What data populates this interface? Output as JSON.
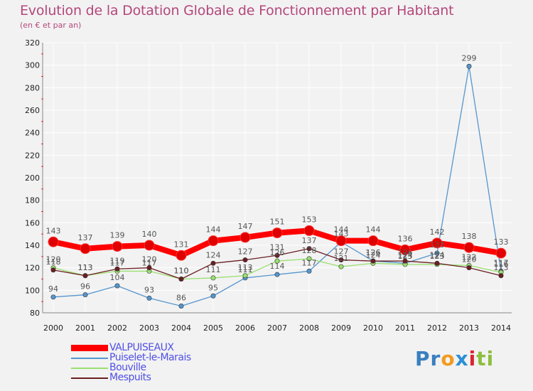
{
  "chart_data": {
    "type": "line",
    "title": "Evolution de la Dotation Globale de Fonctionnement par Habitant",
    "subtitle": "(en € et par an)",
    "xlabel": "",
    "ylabel": "",
    "ylim": [
      80,
      320
    ],
    "y_ticks": [
      "80",
      "100",
      "120",
      "140",
      "160",
      "180",
      "200",
      "220",
      "240",
      "260",
      "280",
      "300",
      "320"
    ],
    "categories": [
      "2000",
      "2001",
      "2002",
      "2003",
      "2004",
      "2005",
      "2006",
      "2007",
      "2008",
      "2009",
      "2010",
      "2011",
      "2012",
      "2013",
      "2014"
    ],
    "series": [
      {
        "name": "VALPUISEAUX",
        "color": "#ff0000",
        "values": [
          143,
          137,
          139,
          140,
          131,
          144,
          147,
          151,
          153,
          144,
          144,
          136,
          142,
          138,
          133
        ],
        "labels": [
          "143",
          "137",
          "139",
          "140",
          "131",
          "144",
          "147",
          "151",
          "153",
          "144",
          "144",
          "136",
          "142",
          "138",
          "133"
        ]
      },
      {
        "name": "Puiselet-le-Marais",
        "color": "#5596ce",
        "values": [
          94,
          96,
          104,
          93,
          86,
          95,
          111,
          114,
          117,
          143,
          126,
          124,
          133,
          299,
          117
        ],
        "labels": [
          "94",
          "96",
          "104",
          "93",
          "86",
          "95",
          "111",
          "114",
          "117",
          "143",
          "126",
          "124",
          "133",
          "299",
          "117"
        ]
      },
      {
        "name": "Bouville",
        "color": "#99e070",
        "values": [
          120,
          113,
          117,
          117,
          110,
          111,
          113,
          126,
          128,
          121,
          124,
          123,
          123,
          122,
          116
        ],
        "labels": [
          "120",
          "113",
          "117",
          "117",
          "110",
          "111",
          "113",
          "126",
          "128",
          "121",
          "124",
          "123",
          "123",
          "122",
          "116"
        ]
      },
      {
        "name": "Mespuits",
        "color": "#6b1e22",
        "values": [
          118,
          113,
          119,
          120,
          110,
          124,
          127,
          131,
          137,
          127,
          126,
          126,
          124,
          120,
          113
        ],
        "labels": [
          "118",
          "113",
          "119",
          "120",
          "110",
          "124",
          "127",
          "131",
          "137",
          "127",
          "126",
          "126",
          "124",
          "120",
          "113"
        ]
      }
    ],
    "legend": "bottom-left"
  },
  "logo": {
    "parts": [
      "Pr",
      "o",
      "x",
      "i",
      "ti"
    ],
    "colors": [
      "#3a7fbf",
      "#f39a1f",
      "#2e8fd6",
      "#d9262e",
      "#8cbf3f"
    ]
  }
}
